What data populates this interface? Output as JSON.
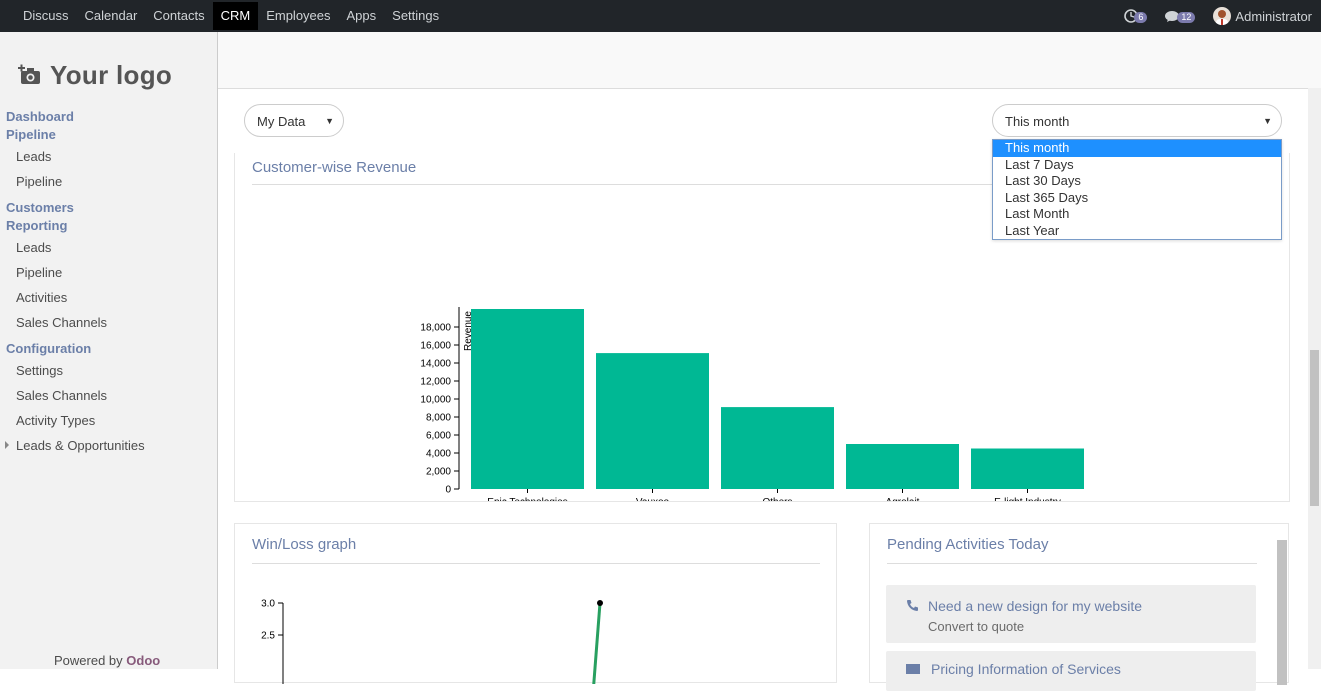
{
  "topbar": {
    "menu": [
      "Discuss",
      "Calendar",
      "Contacts",
      "CRM",
      "Employees",
      "Apps",
      "Settings"
    ],
    "active": "CRM",
    "activity_count": "6",
    "message_count": "12",
    "user_name": "Administrator"
  },
  "sidebar": {
    "logo_text": "Your logo",
    "sections": [
      {
        "title": "Dashboard",
        "links": []
      },
      {
        "title": "Pipeline",
        "links": [
          "Leads",
          "Pipeline"
        ]
      },
      {
        "title": "Customers",
        "links": []
      },
      {
        "title": "Reporting",
        "links": [
          "Leads",
          "Pipeline",
          "Activities",
          "Sales Channels"
        ]
      },
      {
        "title": "Configuration",
        "links": [
          "Settings",
          "Sales Channels",
          "Activity Types"
        ]
      }
    ],
    "expandable": "Leads & Opportunities",
    "powered_by": "Powered by",
    "powered_brand": "Odoo"
  },
  "filters": {
    "data_scope": "My Data",
    "period": "This month",
    "period_options": [
      "This month",
      "Last 7 Days",
      "Last 30 Days",
      "Last 365 Days",
      "Last Month",
      "Last Year"
    ]
  },
  "revenue_panel": {
    "title": "Customer-wise Revenue"
  },
  "winloss_panel": {
    "title": "Win/Loss graph"
  },
  "activities_panel": {
    "title": "Pending Activities Today",
    "items": [
      {
        "title": "Need a new design for my website",
        "subtitle": "Convert to quote"
      },
      {
        "title": "Pricing Information of Services",
        "subtitle": ""
      }
    ]
  },
  "colors": {
    "bar": "#00b894",
    "line": "#28a060",
    "accent": "#6b7fa8"
  },
  "chart_data": [
    {
      "type": "bar",
      "categories": [
        "Epic Technologies",
        "Vauxoo",
        "Others",
        "Agrolait",
        "E-light Industry"
      ],
      "values": [
        20000,
        15100,
        9100,
        5000,
        4500
      ],
      "ylabel": "Revenue",
      "y_ticks": [
        "0",
        "2,000",
        "4,000",
        "6,000",
        "8,000",
        "10,000",
        "12,000",
        "14,000",
        "16,000",
        "18,000"
      ],
      "ylim": [
        0,
        20000
      ],
      "grid": false
    },
    {
      "type": "line",
      "y_ticks": [
        "2.5",
        "3.0"
      ],
      "points": [
        {
          "y": 3.0
        }
      ]
    }
  ]
}
